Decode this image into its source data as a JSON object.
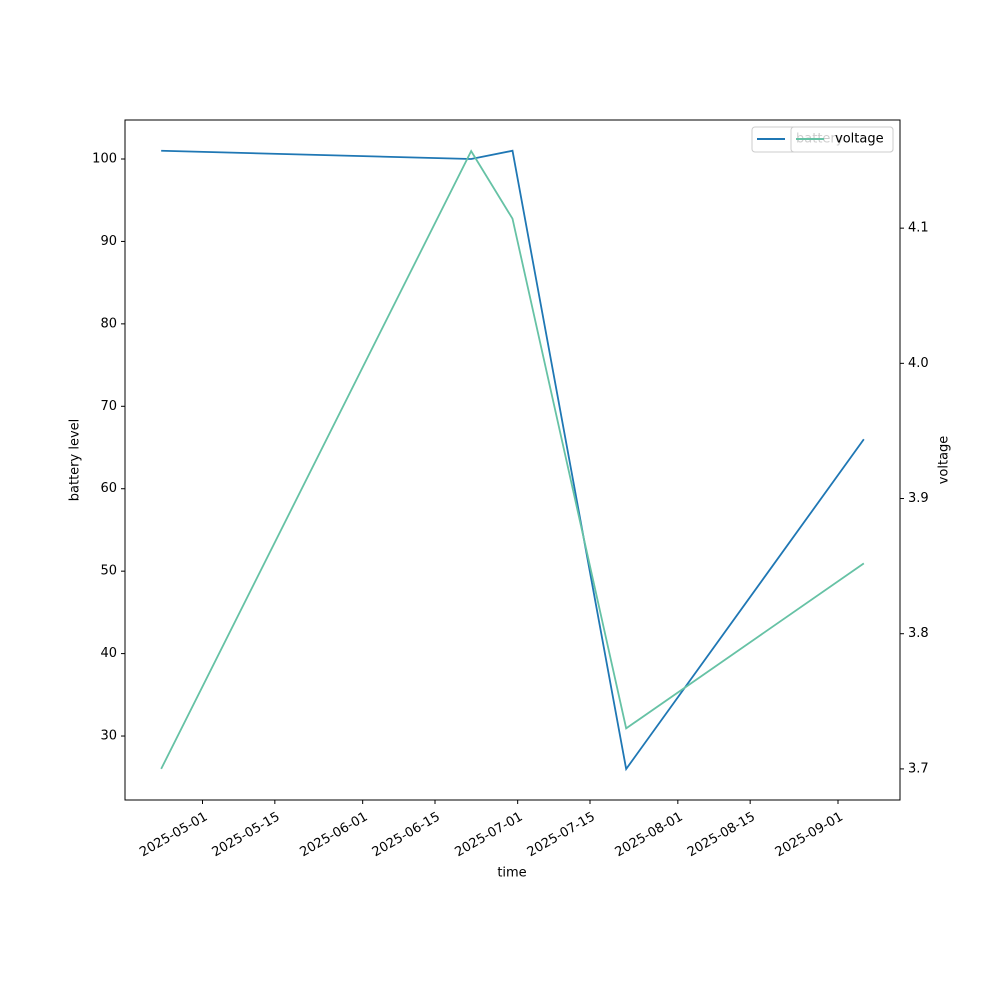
{
  "chart_data": {
    "type": "line",
    "x_label": "time",
    "y_label": "battery level",
    "y2_label": "voltage",
    "x": [
      "2025-04-23",
      "2025-06-22",
      "2025-06-30",
      "2025-07-22",
      "2025-09-06"
    ],
    "series": [
      {
        "name": "battery",
        "color": "#1f77b4",
        "values": [
          101,
          100,
          101,
          26,
          66
        ]
      },
      {
        "name": "voltage",
        "color": "#66c2a5",
        "axis": "y2",
        "values": [
          3.7,
          4.157,
          4.107,
          3.73,
          3.852
        ]
      }
    ],
    "xlim": [
      "2025-04-16",
      "2025-09-13"
    ],
    "xticks": [
      "2025-05-01",
      "2025-05-15",
      "2025-06-01",
      "2025-06-15",
      "2025-07-01",
      "2025-07-15",
      "2025-08-01",
      "2025-08-15",
      "2025-09-01"
    ],
    "ylim": [
      22.24,
      104.73
    ],
    "yticks": [
      30,
      40,
      50,
      60,
      70,
      80,
      90,
      100
    ],
    "y2lim": [
      3.677,
      4.18
    ],
    "y2ticks": [
      3.7,
      3.8,
      3.9,
      {
        "value": 4.0,
        "label": "4.0"
      },
      4.1
    ],
    "grid": false,
    "legend": "upper right"
  }
}
